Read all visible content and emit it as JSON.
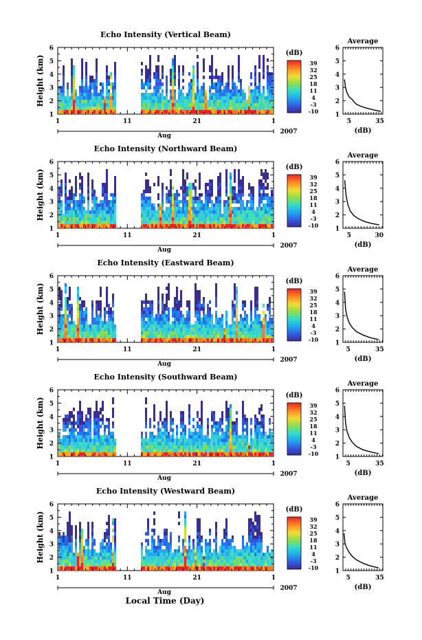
{
  "figure": {
    "xlabel_main": "Local Time (Day)",
    "month_label": "Aug",
    "year_label": "2007",
    "x_ticks": [
      "1",
      "11",
      "21",
      "1"
    ],
    "colorbar_unit": "(dB)",
    "colorbar_ticks": [
      "39",
      "32",
      "25",
      "18",
      "11",
      "4",
      "-3",
      "-10"
    ],
    "avg_title": "Average",
    "avg_xlabel": "(dB)",
    "height_label": "Height (km)",
    "y_ticks": [
      "1",
      "2",
      "3",
      "4",
      "5",
      "6"
    ]
  },
  "chart_data": [
    {
      "type": "heatmap",
      "title": "Echo Intensity (Vertical Beam)",
      "ylabel": "Height (km)",
      "xlabel": "Aug",
      "x_range_days": [
        1,
        32
      ],
      "ylim": [
        1,
        6
      ],
      "colorbar": {
        "unit": "(dB)",
        "range": [
          -10,
          39
        ],
        "ticks": [
          39,
          32,
          25,
          18,
          11,
          4,
          -3,
          -10
        ]
      },
      "data_gap_days": [
        9.2,
        12.8
      ],
      "average_profile": {
        "title": "Average",
        "xlabel": "(dB)",
        "xticks": [
          5,
          35
        ],
        "xlim": [
          -1,
          38
        ],
        "ylim": [
          1,
          6
        ],
        "points": [
          [
            0.5,
            3.6
          ],
          [
            1.5,
            3.0
          ],
          [
            3,
            2.6
          ],
          [
            5,
            2.3
          ],
          [
            8,
            2.1
          ],
          [
            10,
            1.9
          ],
          [
            12,
            1.75
          ],
          [
            16,
            1.6
          ],
          [
            22,
            1.45
          ],
          [
            30,
            1.3
          ],
          [
            36,
            1.2
          ]
        ]
      }
    },
    {
      "type": "heatmap",
      "title": "Echo Intensity (Northward Beam)",
      "ylabel": "Height (km)",
      "xlabel": "Aug",
      "x_range_days": [
        1,
        32
      ],
      "ylim": [
        1,
        6
      ],
      "colorbar": {
        "unit": "(dB)",
        "range": [
          -10,
          39
        ],
        "ticks": [
          39,
          32,
          25,
          18,
          11,
          4,
          -3,
          -10
        ]
      },
      "data_gap_days": [
        9.2,
        12.8
      ],
      "average_profile": {
        "title": "Average",
        "xlabel": "(dB)",
        "xticks": [
          5,
          30
        ],
        "xlim": [
          0,
          33
        ],
        "ylim": [
          1,
          6
        ],
        "points": [
          [
            1.5,
            4.6
          ],
          [
            2.5,
            3.5
          ],
          [
            4,
            2.8
          ],
          [
            6,
            2.3
          ],
          [
            9,
            1.95
          ],
          [
            13,
            1.7
          ],
          [
            18,
            1.5
          ],
          [
            24,
            1.35
          ],
          [
            30,
            1.25
          ]
        ]
      }
    },
    {
      "type": "heatmap",
      "title": "Echo Intensity (Eastward Beam)",
      "ylabel": "Height (km)",
      "xlabel": "Aug",
      "x_range_days": [
        1,
        32
      ],
      "ylim": [
        1,
        6
      ],
      "colorbar": {
        "unit": "(dB)",
        "range": [
          -10,
          39
        ],
        "ticks": [
          39,
          32,
          25,
          18,
          11,
          4,
          -3,
          -10
        ]
      },
      "data_gap_days": [
        9.2,
        12.8
      ],
      "average_profile": {
        "title": "Average",
        "xlabel": "(dB)",
        "xticks": [
          5,
          35
        ],
        "xlim": [
          0,
          38
        ],
        "ylim": [
          1,
          6
        ],
        "points": [
          [
            1.5,
            4.8
          ],
          [
            2.5,
            3.5
          ],
          [
            4,
            2.9
          ],
          [
            6,
            2.45
          ],
          [
            9,
            2.1
          ],
          [
            13,
            1.8
          ],
          [
            19,
            1.55
          ],
          [
            26,
            1.35
          ],
          [
            34,
            1.2
          ]
        ]
      }
    },
    {
      "type": "heatmap",
      "title": "Echo Intensity (Southward Beam)",
      "ylabel": "Height (km)",
      "xlabel": "Aug",
      "x_range_days": [
        1,
        32
      ],
      "ylim": [
        1,
        6
      ],
      "colorbar": {
        "unit": "(dB)",
        "range": [
          -10,
          39
        ],
        "ticks": [
          39,
          32,
          25,
          18,
          11,
          4,
          -3,
          -10
        ]
      },
      "data_gap_days": [
        9.2,
        12.8
      ],
      "average_profile": {
        "title": "Average",
        "xlabel": "(dB)",
        "xticks": [
          5,
          35
        ],
        "xlim": [
          0,
          38
        ],
        "ylim": [
          1,
          6
        ],
        "points": [
          [
            1.5,
            4.8
          ],
          [
            2.5,
            3.5
          ],
          [
            4,
            2.85
          ],
          [
            6,
            2.4
          ],
          [
            9,
            2.05
          ],
          [
            13,
            1.75
          ],
          [
            19,
            1.5
          ],
          [
            26,
            1.35
          ],
          [
            34,
            1.2
          ]
        ]
      }
    },
    {
      "type": "heatmap",
      "title": "Echo Intensity (Westward Beam)",
      "ylabel": "Height (km)",
      "xlabel": "Aug",
      "x_range_days": [
        1,
        32
      ],
      "ylim": [
        1,
        6
      ],
      "colorbar": {
        "unit": "(dB)",
        "range": [
          -10,
          39
        ],
        "ticks": [
          39,
          32,
          25,
          18,
          11,
          4,
          -3,
          -10
        ]
      },
      "data_gap_days": [
        9.2,
        12.8
      ],
      "average_profile": {
        "title": "Average",
        "xlabel": "(dB)",
        "xticks": [
          5,
          35
        ],
        "xlim": [
          0,
          38
        ],
        "ylim": [
          1,
          6
        ],
        "points": [
          [
            1,
            3.8
          ],
          [
            2,
            3.0
          ],
          [
            3.5,
            2.7
          ],
          [
            6,
            2.35
          ],
          [
            9,
            2.05
          ],
          [
            13,
            1.8
          ],
          [
            19,
            1.55
          ],
          [
            26,
            1.35
          ],
          [
            34,
            1.2
          ]
        ]
      }
    }
  ]
}
